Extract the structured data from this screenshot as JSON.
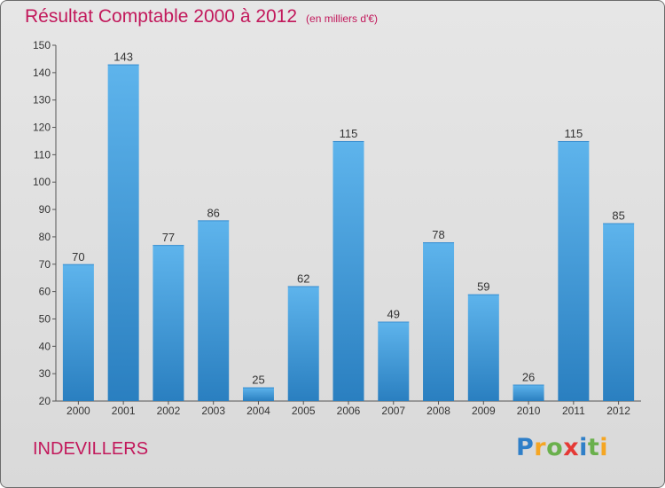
{
  "header": {
    "title": "Résultat Comptable 2000 à 2012",
    "unit": "(en milliers d'€)"
  },
  "footer": {
    "commune": "INDEVILLERS",
    "logo": {
      "letters": [
        "P",
        "r",
        "o",
        "x",
        "i",
        "t",
        "i"
      ],
      "colors": [
        "#2f7fc8",
        "#f5a623",
        "#6ab04c",
        "#e53935",
        "#2f7fc8",
        "#6ab04c",
        "#f5a623"
      ]
    }
  },
  "colors": {
    "bar_light": "#5eb4ec",
    "bar_dark": "#2a7fc0",
    "text": "#333333",
    "accent": "#c2185b"
  },
  "chart_data": {
    "type": "bar",
    "title": "Résultat Comptable 2000 à 2012",
    "subtitle": "(en milliers d'€)",
    "categories": [
      "2000",
      "2001",
      "2002",
      "2003",
      "2004",
      "2005",
      "2006",
      "2007",
      "2008",
      "2009",
      "2010",
      "2011",
      "2012"
    ],
    "values": [
      70,
      143,
      77,
      86,
      25,
      62,
      115,
      49,
      78,
      59,
      26,
      115,
      85
    ],
    "xlabel": "",
    "ylabel": "",
    "ylim": [
      20,
      150
    ],
    "yticks": [
      20,
      30,
      40,
      50,
      60,
      70,
      80,
      90,
      100,
      110,
      120,
      130,
      140,
      150
    ],
    "grid": false,
    "data_labels": true
  }
}
